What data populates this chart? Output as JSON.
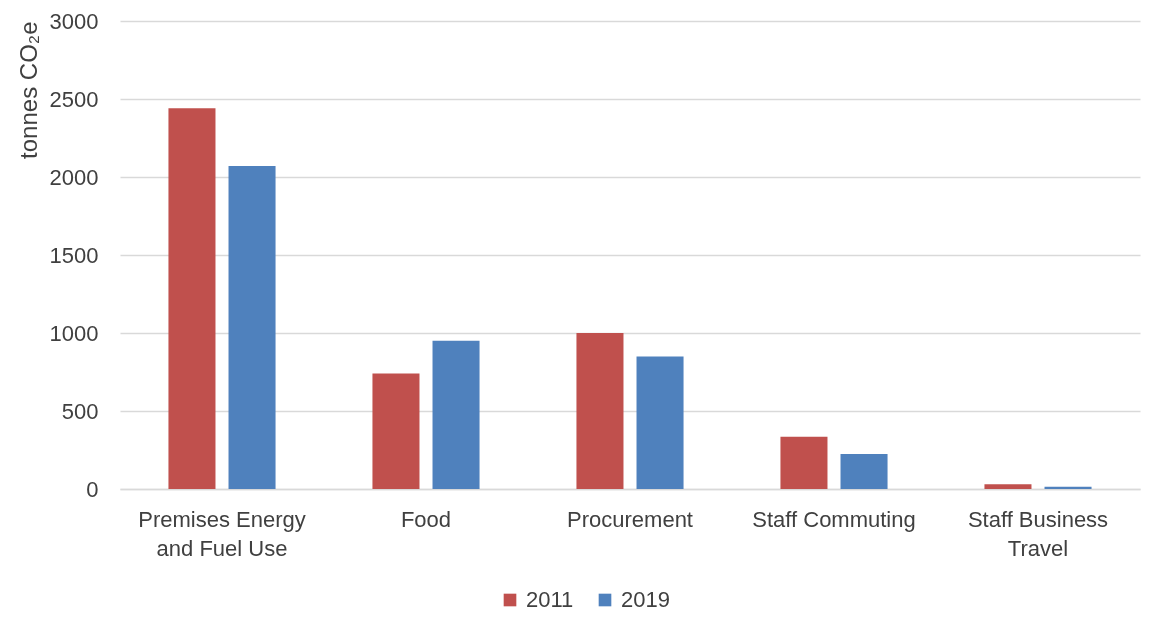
{
  "chart_data": {
    "type": "bar",
    "ylabel": "tonnes CO₂e",
    "categories": [
      "Premises Energy and Fuel Use",
      "Food",
      "Procurement",
      "Staff Commuting",
      "Staff Business Travel"
    ],
    "series": [
      {
        "name": "2011",
        "color": "#c0504d",
        "values": [
          2440,
          740,
          1000,
          335,
          30
        ]
      },
      {
        "name": "2019",
        "color": "#4f81bd",
        "values": [
          2070,
          950,
          850,
          225,
          15
        ]
      }
    ],
    "ylim": [
      0,
      3000
    ],
    "yticks": [
      0,
      500,
      1000,
      1500,
      2000,
      2500,
      3000
    ],
    "grid": "y",
    "legend": "bottom"
  }
}
